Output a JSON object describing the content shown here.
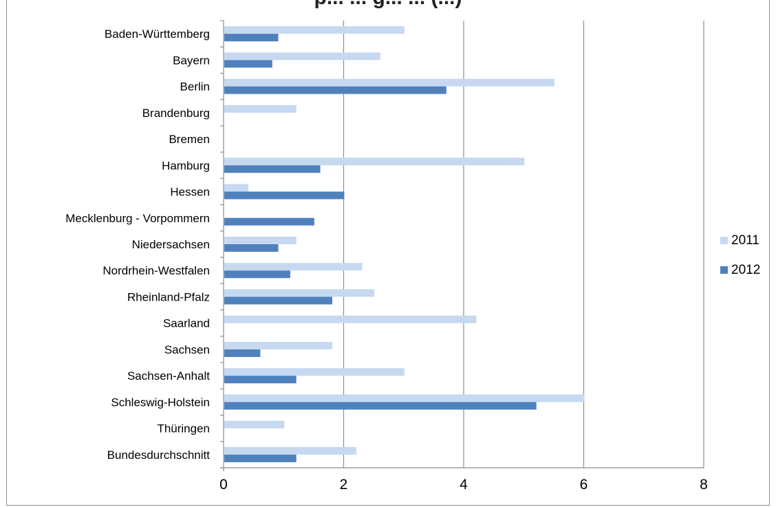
{
  "chart_data": {
    "type": "bar",
    "orientation": "horizontal",
    "title": "p... ... g... ... (...)",
    "categories": [
      "Baden-Württemberg",
      "Bayern",
      "Berlin",
      "Brandenburg",
      "Bremen",
      "Hamburg",
      "Hessen",
      "Mecklenburg - Vorpommern",
      "Niedersachsen",
      "Nordrhein-Westfalen",
      "Rheinland-Pfalz",
      "Saarland",
      "Sachsen",
      "Sachsen-Anhalt",
      "Schleswig-Holstein",
      "Thüringen",
      "Bundesdurchschnitt"
    ],
    "series": [
      {
        "name": "2011",
        "color": "#c6d9f1",
        "values": [
          3.0,
          2.6,
          5.5,
          1.2,
          0,
          5.0,
          0.4,
          0,
          1.2,
          2.3,
          2.5,
          4.2,
          1.8,
          3.0,
          6.0,
          1.0,
          2.2
        ]
      },
      {
        "name": "2012",
        "color": "#4f81bd",
        "values": [
          0.9,
          0.8,
          3.7,
          0,
          0,
          1.6,
          2.0,
          1.5,
          0.9,
          1.1,
          1.8,
          0,
          0.6,
          1.2,
          5.2,
          0,
          1.2
        ]
      }
    ],
    "xlim": [
      0,
      8
    ],
    "xticks": [
      "0",
      "2",
      "4",
      "6",
      "8"
    ],
    "grid": "vertical",
    "legend_position": "right"
  }
}
